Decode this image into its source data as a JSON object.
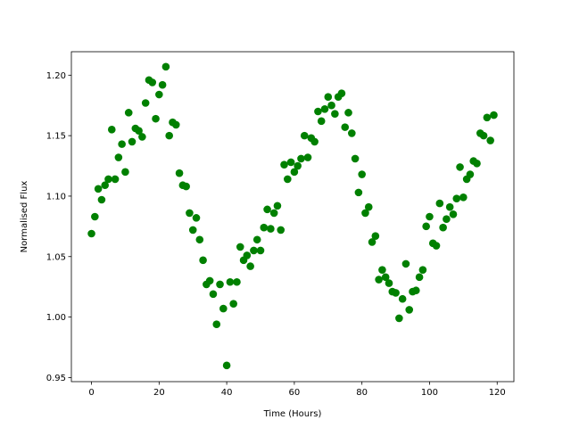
{
  "chart_data": {
    "type": "scatter",
    "x_label": "Time (Hours)",
    "y_label": "Normalised Flux",
    "color": "#008000",
    "grid": false,
    "xlim": [
      -5.95,
      124.95
    ],
    "xticks": [
      0,
      20,
      40,
      60,
      80,
      100,
      120
    ],
    "ylim": [
      0.9466,
      1.2194
    ],
    "yticks": [
      0.95,
      {
        "value": 1.0,
        "label": "1.00"
      },
      1.05,
      {
        "value": 1.1,
        "label": "1.10"
      },
      1.15,
      {
        "value": 1.2,
        "label": "1.20"
      }
    ],
    "x": [
      0,
      1,
      2,
      3,
      4,
      5,
      6,
      7,
      8,
      9,
      10,
      11,
      12,
      13,
      14,
      15,
      16,
      17,
      18,
      19,
      20,
      21,
      22,
      23,
      24,
      25,
      26,
      27,
      28,
      29,
      30,
      31,
      32,
      33,
      34,
      35,
      36,
      37,
      38,
      39,
      40,
      41,
      42,
      43,
      44,
      45,
      46,
      47,
      48,
      49,
      50,
      51,
      52,
      53,
      54,
      55,
      56,
      57,
      58,
      59,
      60,
      61,
      62,
      63,
      64,
      65,
      66,
      67,
      68,
      69,
      70,
      71,
      72,
      73,
      74,
      75,
      76,
      77,
      78,
      79,
      80,
      81,
      82,
      83,
      84,
      85,
      86,
      87,
      88,
      89,
      90,
      91,
      92,
      93,
      94,
      95,
      96,
      97,
      98,
      99,
      100,
      101,
      102,
      103,
      104,
      105,
      106,
      107,
      108,
      109,
      110,
      111,
      112,
      113,
      114,
      115,
      116,
      117,
      118,
      119
    ],
    "values": [
      1.069,
      1.083,
      1.106,
      1.097,
      1.109,
      1.114,
      1.155,
      1.114,
      1.132,
      1.143,
      1.12,
      1.169,
      1.145,
      1.156,
      1.154,
      1.149,
      1.177,
      1.196,
      1.194,
      1.164,
      1.184,
      1.192,
      1.207,
      1.15,
      1.161,
      1.159,
      1.119,
      1.109,
      1.108,
      1.086,
      1.072,
      1.082,
      1.064,
      1.047,
      1.027,
      1.03,
      1.019,
      0.994,
      1.027,
      1.007,
      0.96,
      1.029,
      1.011,
      1.029,
      1.058,
      1.047,
      1.051,
      1.042,
      1.055,
      1.064,
      1.055,
      1.074,
      1.089,
      1.073,
      1.086,
      1.092,
      1.072,
      1.126,
      1.114,
      1.128,
      1.12,
      1.125,
      1.131,
      1.15,
      1.132,
      1.148,
      1.145,
      1.17,
      1.162,
      1.172,
      1.182,
      1.175,
      1.168,
      1.182,
      1.185,
      1.157,
      1.169,
      1.152,
      1.131,
      1.103,
      1.118,
      1.086,
      1.091,
      1.062,
      1.067,
      1.031,
      1.039,
      1.033,
      1.028,
      1.021,
      1.02,
      0.999,
      1.015,
      1.044,
      1.006,
      1.021,
      1.022,
      1.033,
      1.039,
      1.075,
      1.083,
      1.061,
      1.059,
      1.094,
      1.074,
      1.081,
      1.091,
      1.085,
      1.098,
      1.124,
      1.099,
      1.114,
      1.118,
      1.129,
      1.127,
      1.152,
      1.15,
      1.165,
      1.146,
      1.167
    ]
  }
}
